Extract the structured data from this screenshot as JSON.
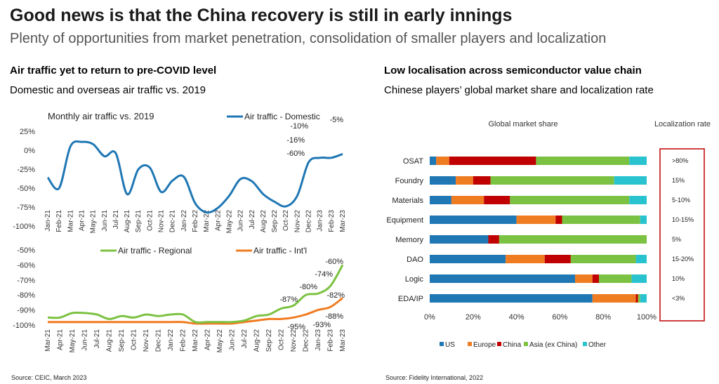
{
  "header": {
    "title": "Good news is that the China recovery is still in early innings",
    "subtitle": "Plenty of opportunities from market penetration, consolidation of smaller players and localization"
  },
  "left_panel": {
    "title": "Air traffic yet to return to pre-COVID level",
    "subtitle": "Domestic and overseas air traffic vs. 2019",
    "source": "Source: CEIC, March 2023"
  },
  "right_panel": {
    "title": "Low localisation across semiconductor value chain",
    "subtitle": "Chinese players’ global market share and localization rate",
    "source": "Source: Fidelity International, 2022"
  },
  "colors": {
    "domestic": "#1f77b4",
    "regional": "#7cc242",
    "intl": "#f07c22",
    "US": "#1f77b4",
    "Europe": "#f07c22",
    "China": "#c00000",
    "Asia (ex China)": "#7cc242",
    "Other": "#29c3cf",
    "localization_box": "#c00000"
  },
  "chart_data": [
    {
      "type": "line",
      "inner_title": "Monthly air traffic vs. 2019",
      "x": [
        "Jan-21",
        "Feb-21",
        "Mar-21",
        "Apr-21",
        "May-21",
        "Jun-21",
        "Jul-21",
        "Aug-21",
        "Sep-21",
        "Oct-21",
        "Nov-21",
        "Dec-21",
        "Jan-22",
        "Feb-22",
        "Mar-22",
        "Apr-22",
        "May-22",
        "Jun-22",
        "Jul-22",
        "Aug-22",
        "Sep-22",
        "Oct-22",
        "Nov-22",
        "Dec-22",
        "Jan-23",
        "Feb-23",
        "Mar-23"
      ],
      "yticks": [
        "25%",
        "0%",
        "-25%",
        "-50%",
        "-75%",
        "-100%"
      ],
      "ylim": [
        -100,
        25
      ],
      "legend_position": "top-right",
      "series": [
        {
          "name": "Air traffic - Domestic",
          "values": [
            -36,
            -50,
            5,
            11,
            8,
            -8,
            -4,
            -58,
            -25,
            -23,
            -55,
            -40,
            -35,
            -70,
            -82,
            -76,
            -60,
            -38,
            -41,
            -58,
            -68,
            -74,
            -60,
            -16,
            -10,
            -10,
            -5
          ]
        }
      ],
      "annotations": [
        "-5%",
        "-10%",
        "-16%",
        "-60%"
      ]
    },
    {
      "type": "line",
      "x": [
        "Mar-21",
        "Apr-21",
        "May-21",
        "Jun-21",
        "Jul-21",
        "Aug-21",
        "Sep-21",
        "Oct-21",
        "Nov-21",
        "Dec-21",
        "Jan-22",
        "Feb-22",
        "Mar-22",
        "Apr-22",
        "May-22",
        "Jun-22",
        "Jul-22",
        "Aug-22",
        "Sep-22",
        "Oct-22",
        "Nov-22",
        "Dec-22",
        "Jan-23",
        "Feb-23",
        "Mar-23"
      ],
      "yticks": [
        "-50%",
        "-60%",
        "-70%",
        "-80%",
        "-90%",
        "-100%"
      ],
      "ylim": [
        -100,
        -50
      ],
      "legend_position": "top",
      "series": [
        {
          "name": "Air traffic - Regional",
          "values": [
            -95,
            -95,
            -92,
            -92,
            -93,
            -96,
            -94,
            -95,
            -93,
            -94,
            -93,
            -93,
            -98,
            -98,
            -98,
            -98,
            -97,
            -94,
            -93,
            -89,
            -87,
            -80,
            -79,
            -74,
            -60
          ]
        },
        {
          "name": "Air traffic - Int'l",
          "values": [
            -98,
            -98,
            -98,
            -98,
            -98,
            -98,
            -98,
            -98,
            -98,
            -98,
            -98,
            -98,
            -99,
            -99,
            -99,
            -99,
            -98,
            -97,
            -96,
            -96,
            -95,
            -93,
            -90,
            -88,
            -82
          ]
        }
      ],
      "annotations": [
        "-60%",
        "-74%",
        "-80%",
        "-87%",
        "-82%",
        "-88%",
        "-93%",
        "-95%"
      ]
    },
    {
      "type": "bar",
      "orientation": "horizontal-stacked",
      "column_headers": {
        "share": "Global market share",
        "localization": "Localization rate"
      },
      "categories": [
        "OSAT",
        "Foundry",
        "Materials",
        "Equipment",
        "Memory",
        "DAO",
        "Logic",
        "EDA/IP"
      ],
      "xticks": [
        "0%",
        "20%",
        "40%",
        "60%",
        "80%",
        "100%"
      ],
      "xlim": [
        0,
        100
      ],
      "legend_position": "bottom",
      "series": [
        {
          "name": "US",
          "values": [
            3,
            12,
            10,
            40,
            27,
            35,
            67,
            75
          ]
        },
        {
          "name": "Europe",
          "values": [
            6,
            8,
            15,
            18,
            0,
            18,
            8,
            20
          ]
        },
        {
          "name": "China",
          "values": [
            40,
            8,
            12,
            3,
            5,
            12,
            3,
            1
          ]
        },
        {
          "name": "Asia (ex China)",
          "values": [
            43,
            57,
            55,
            36,
            68,
            30,
            15,
            1
          ]
        },
        {
          "name": "Other",
          "values": [
            8,
            15,
            8,
            3,
            0,
            5,
            7,
            3
          ]
        }
      ],
      "localization_rate": [
        ">80%",
        "15%",
        "5-10%",
        "10-15%",
        "5%",
        "15-20%",
        "10%",
        "<3%"
      ]
    }
  ]
}
